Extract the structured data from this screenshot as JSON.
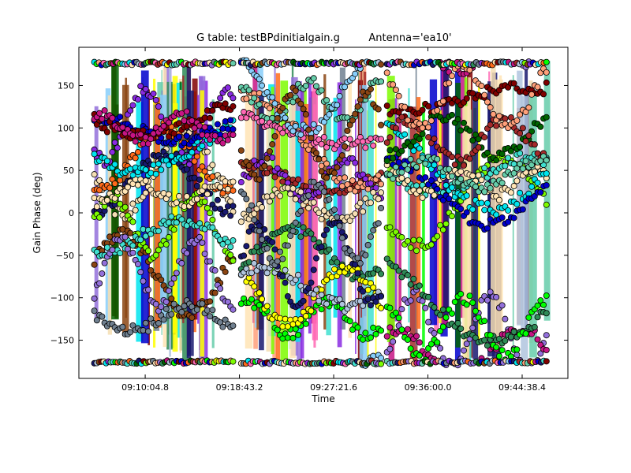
{
  "chart_data": {
    "type": "scatter",
    "title": "G table: testBPdinitialgain.g",
    "title_right": "Antenna='ea10'",
    "xlabel": "Time",
    "ylabel": "Gain Phase (deg)",
    "x_range": [
      "09:04:00",
      "09:48:50"
    ],
    "ylim": [
      -195,
      195
    ],
    "x_ticks": [
      {
        "label": "09:10:04.8",
        "t": 604.8
      },
      {
        "label": "09:18:43.2",
        "t": 1123.2
      },
      {
        "label": "09:27:21.6",
        "t": 1641.6
      },
      {
        "label": "09:36:00.0",
        "t": 2160.0
      },
      {
        "label": "09:44:38.4",
        "t": 2678.4
      }
    ],
    "y_ticks": [
      150,
      100,
      50,
      0,
      -50,
      -100,
      -150
    ],
    "grid": false,
    "legend": "none",
    "scans": [
      {
        "start": "09:05:25",
        "end": "09:18:08"
      },
      {
        "start": "09:18:53",
        "end": "09:31:42"
      },
      {
        "start": "09:32:15",
        "end": "09:46:52"
      }
    ],
    "series_colors": [
      "#8a2be2",
      "#ff6a1a",
      "#00e5ee",
      "#2e8b57",
      "#ffff00",
      "#f5deb3",
      "#7cfc00",
      "#0000cd",
      "#a52a2a",
      "#ff69b4",
      "#191970",
      "#40e0d0",
      "#800000",
      "#00ff00",
      "#b0c4de",
      "#8b4513",
      "#ffe4b5",
      "#c71585",
      "#ffa07a",
      "#87cefa",
      "#708090",
      "#9370db",
      "#006400",
      "#66cdaa"
    ]
  }
}
